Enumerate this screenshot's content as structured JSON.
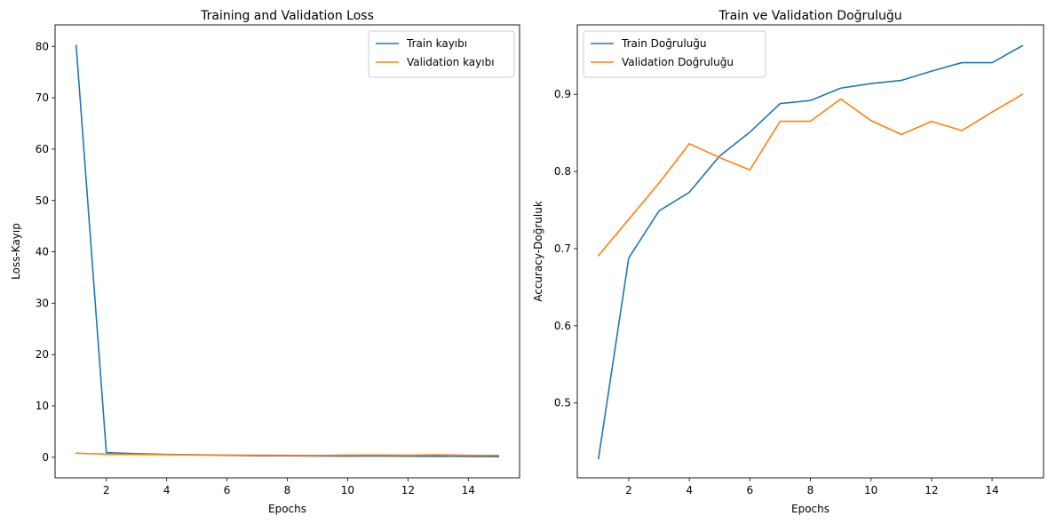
{
  "chart_data": [
    {
      "type": "line",
      "title": "Training and Validation Loss",
      "xlabel": "Epochs",
      "ylabel": "Loss-Kayıp",
      "xlim": [
        0.3,
        15.7
      ],
      "ylim": [
        -4.0,
        84.2
      ],
      "xticks": [
        2,
        4,
        6,
        8,
        10,
        12,
        14
      ],
      "yticks": [
        0,
        10,
        20,
        30,
        40,
        50,
        60,
        70,
        80
      ],
      "legend": "top-right",
      "grid": false,
      "x": [
        1,
        2,
        3,
        4,
        5,
        6,
        7,
        8,
        9,
        10,
        11,
        12,
        13,
        14,
        15
      ],
      "series": [
        {
          "name": "Train kayıbı",
          "color": "#1f77b4",
          "values": [
            80.2,
            0.9,
            0.7,
            0.55,
            0.48,
            0.38,
            0.3,
            0.28,
            0.25,
            0.22,
            0.25,
            0.2,
            0.18,
            0.16,
            0.12
          ]
        },
        {
          "name": "Validation kayıbı",
          "color": "#ff7f0e",
          "values": [
            0.8,
            0.6,
            0.55,
            0.5,
            0.45,
            0.42,
            0.4,
            0.38,
            0.36,
            0.42,
            0.45,
            0.4,
            0.48,
            0.38,
            0.35
          ]
        }
      ]
    },
    {
      "type": "line",
      "title": "Train ve Validation Doğruluğu",
      "xlabel": "Epochs",
      "ylabel": "Accuracy-Doğruluk",
      "xlim": [
        0.3,
        15.7
      ],
      "ylim": [
        0.403,
        0.99
      ],
      "xticks": [
        2,
        4,
        6,
        8,
        10,
        12,
        14
      ],
      "yticks": [
        0.5,
        0.6,
        0.7,
        0.8,
        0.9
      ],
      "yticklabels": [
        "0.5",
        "0.6",
        "0.7",
        "0.8",
        "0.9"
      ],
      "legend": "top-left",
      "grid": false,
      "x": [
        1,
        2,
        3,
        4,
        5,
        6,
        7,
        8,
        9,
        10,
        11,
        12,
        13,
        14,
        15
      ],
      "series": [
        {
          "name": "Train Doğruluğu",
          "color": "#1f77b4",
          "values": [
            0.428,
            0.688,
            0.749,
            0.773,
            0.82,
            0.851,
            0.888,
            0.892,
            0.908,
            0.914,
            0.918,
            0.93,
            0.941,
            0.941,
            0.963
          ]
        },
        {
          "name": "Validation Doğruluğu",
          "color": "#ff7f0e",
          "values": [
            0.691,
            0.738,
            0.785,
            0.836,
            0.818,
            0.802,
            0.865,
            0.865,
            0.894,
            0.866,
            0.848,
            0.865,
            0.853,
            0.877,
            0.9
          ]
        }
      ]
    }
  ]
}
